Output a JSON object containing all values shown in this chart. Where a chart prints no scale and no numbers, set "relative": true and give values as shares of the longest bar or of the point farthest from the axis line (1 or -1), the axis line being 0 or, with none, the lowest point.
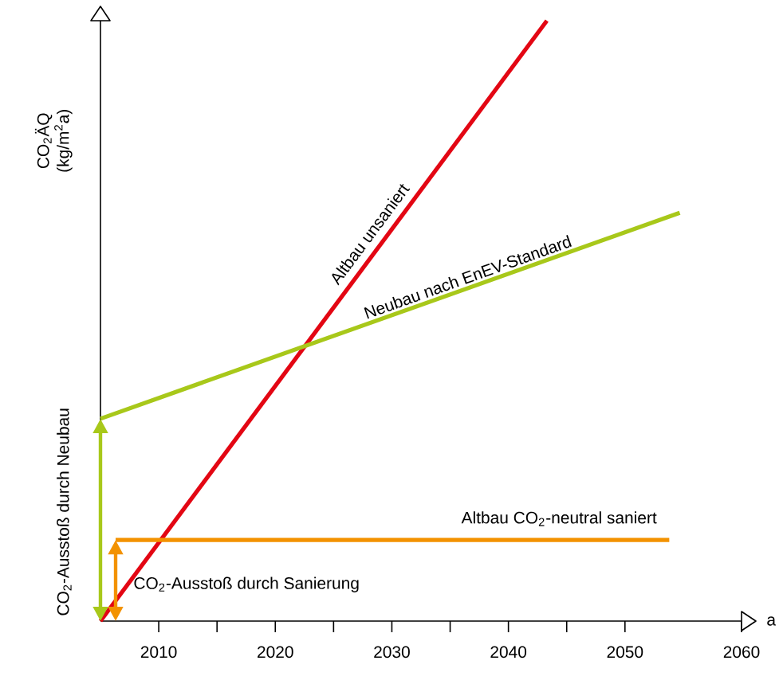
{
  "chart_data": {
    "type": "line",
    "relative": true,
    "ylabel": "CO$_{2}$ÄQ (kg/m$^{2}$a)",
    "xlabel": "a",
    "xlim": [
      2005,
      2060
    ],
    "xticks": [
      2010,
      {
        "value": 2015,
        "label": null
      },
      2020,
      {
        "value": 2025,
        "label": null
      },
      2030,
      {
        "value": 2035,
        "label": null
      },
      2040,
      {
        "value": 2045,
        "label": null
      },
      2050,
      2060
    ],
    "series": [
      {
        "name": "Altbau unsaniert",
        "color": "#e30613",
        "x": [
          2005,
          2043.3
        ],
        "values": [
          0,
          1
        ]
      },
      {
        "name": "Neubau nach EnEV-Standard",
        "color": "#a8c81a",
        "x": [
          2005,
          2054.7
        ],
        "values": [
          0.337,
          0.68
        ]
      },
      {
        "name": "Altbau CO$_{2}$-neutral saniert",
        "color": "#f39200",
        "x": [
          2006.3,
          2053.8
        ],
        "values": [
          0.135,
          0.135
        ]
      }
    ],
    "annotations": [
      "CO$_{2}$-Ausstoß durch Neubau",
      "CO$_{2}$-Ausstoß durch Sanierung"
    ]
  }
}
